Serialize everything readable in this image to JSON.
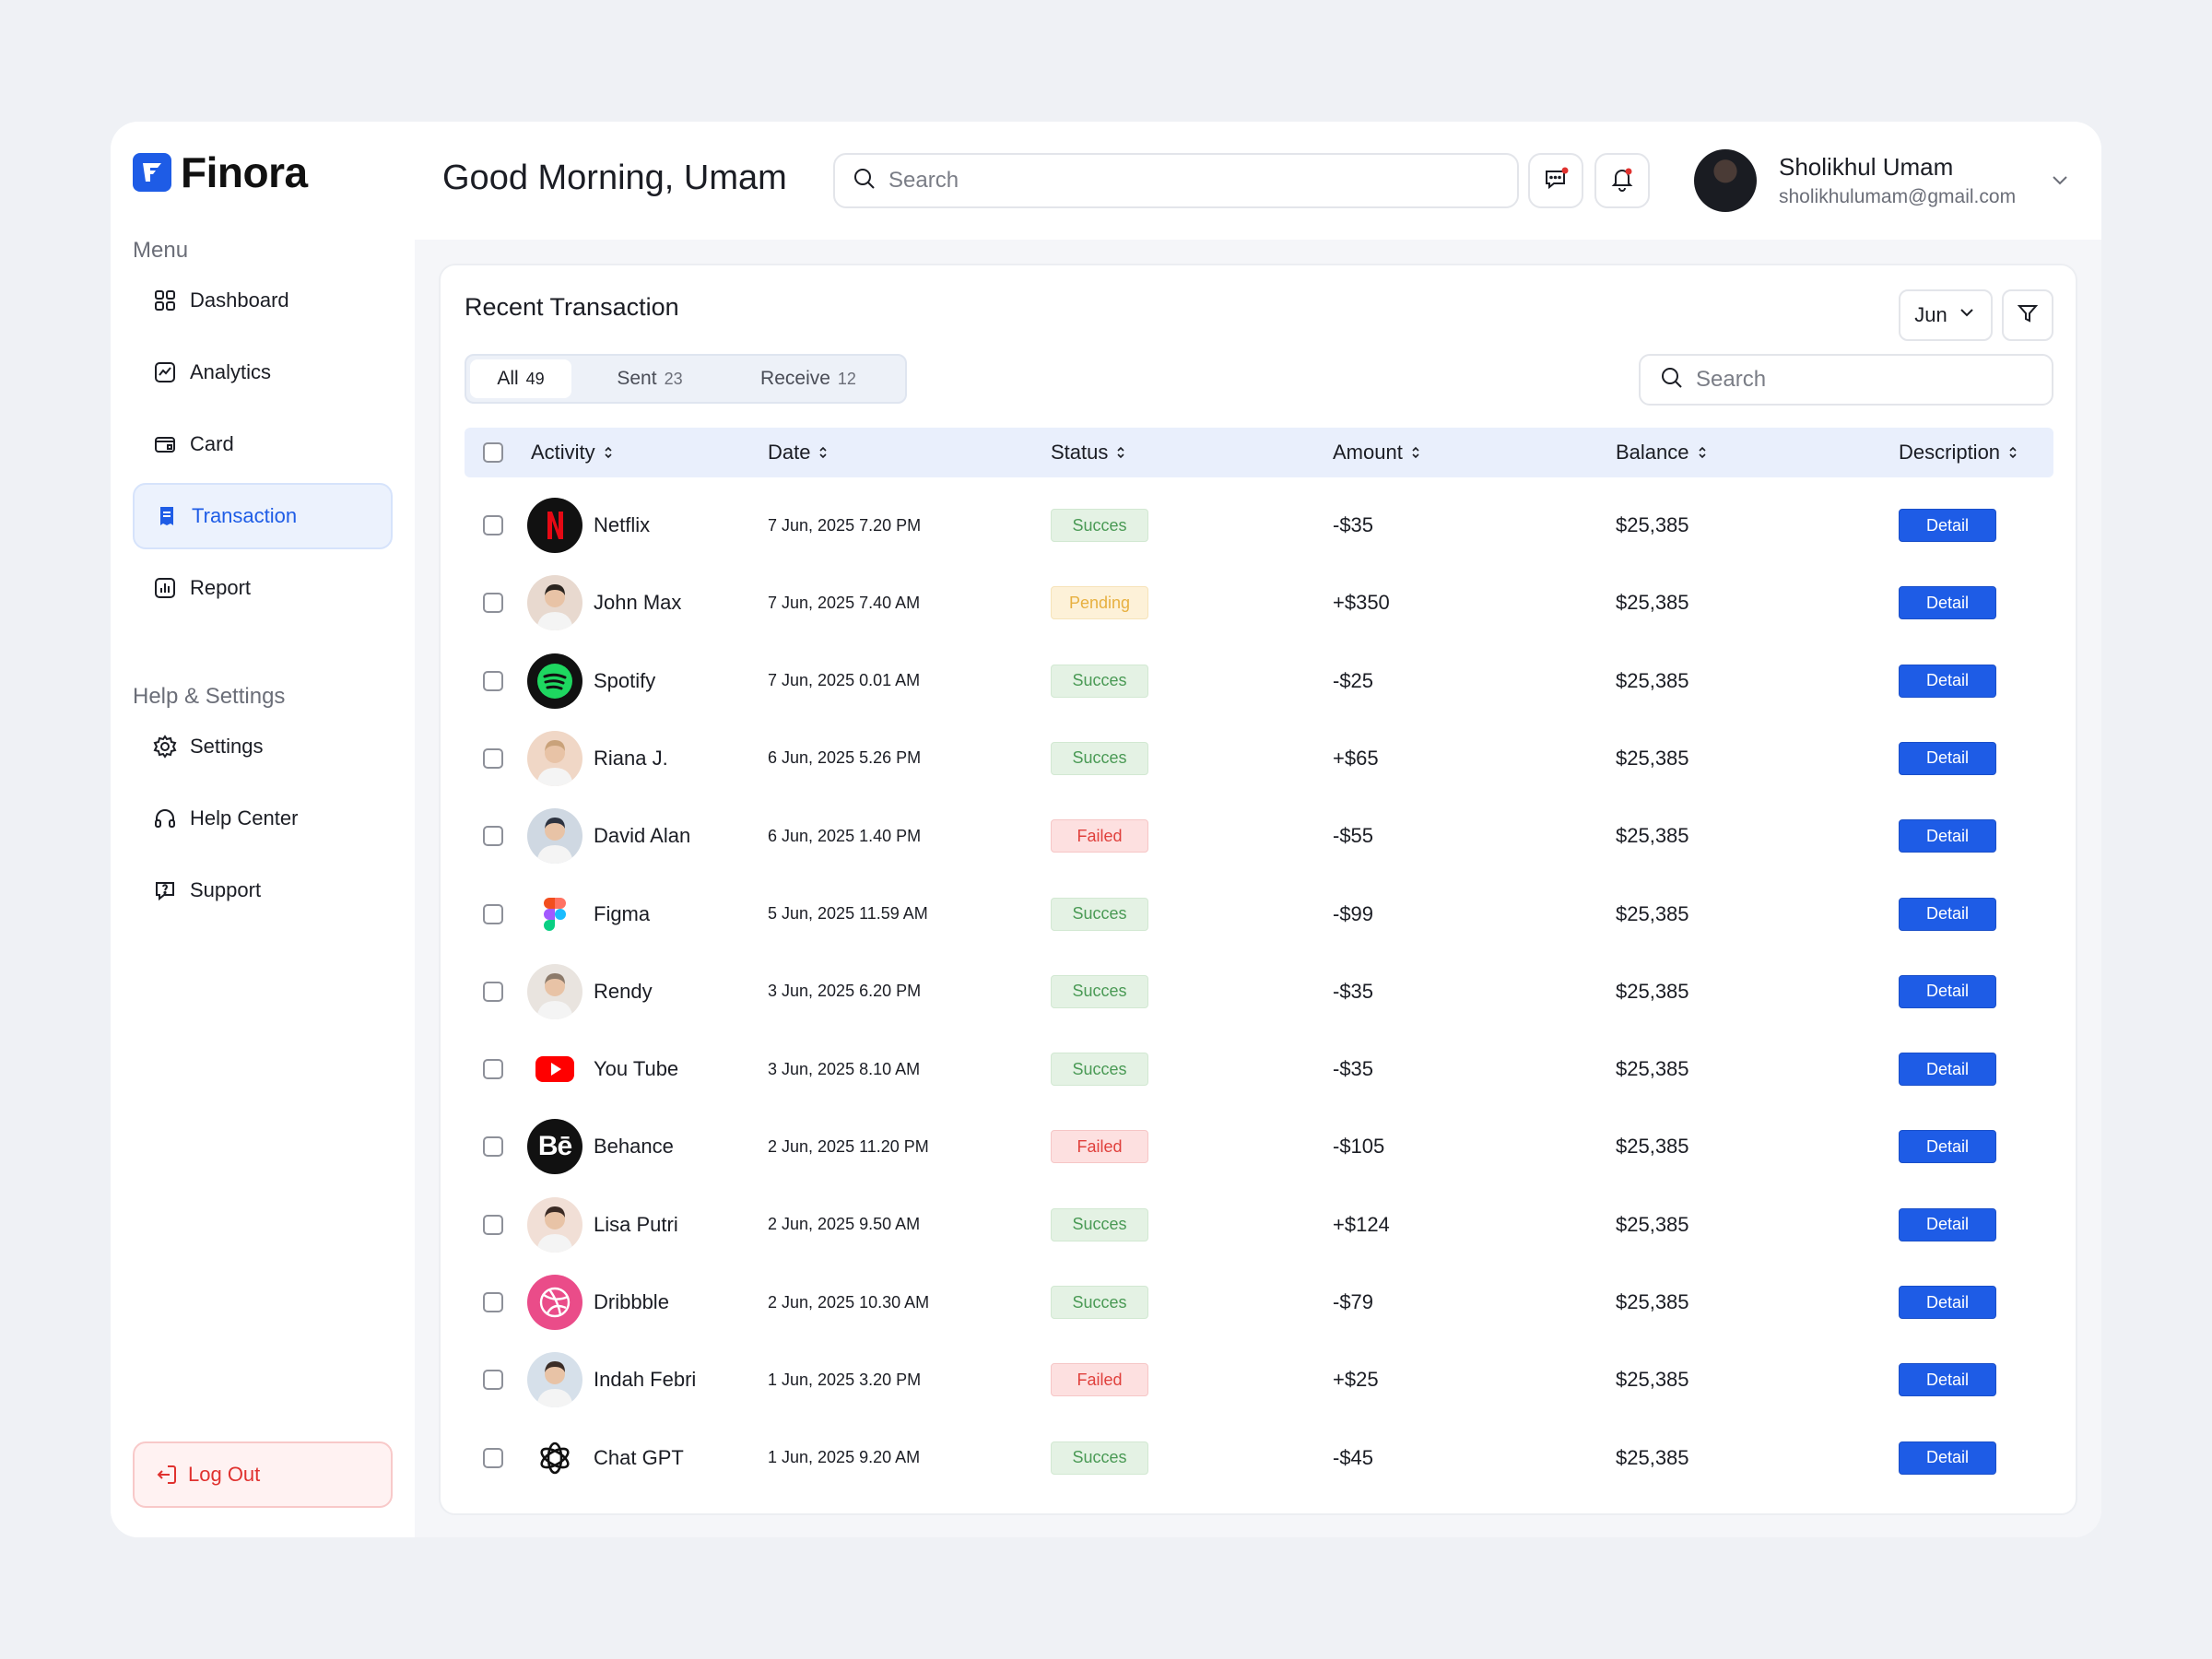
{
  "brand": {
    "name": "Finora",
    "color": "#1e5ce6"
  },
  "sidebar": {
    "menu_label": "Menu",
    "menu_items": [
      {
        "label": "Dashboard",
        "icon": "grid-icon"
      },
      {
        "label": "Analytics",
        "icon": "analytics-icon"
      },
      {
        "label": "Card",
        "icon": "wallet-icon"
      },
      {
        "label": "Transaction",
        "icon": "receipt-icon",
        "active": true
      },
      {
        "label": "Report",
        "icon": "report-icon"
      }
    ],
    "help_label": "Help & Settings",
    "help_items": [
      {
        "label": "Settings",
        "icon": "gear-icon"
      },
      {
        "label": "Help Center",
        "icon": "headset-icon"
      },
      {
        "label": "Support",
        "icon": "question-bubble-icon"
      }
    ],
    "logout_label": "Log Out"
  },
  "header": {
    "greeting": "Good Morning, Umam",
    "search_placeholder": "Search",
    "user": {
      "name": "Sholikhul Umam",
      "email": "sholikhulumam@gmail.com"
    }
  },
  "transactions": {
    "title": "Recent Transaction",
    "month": "Jun",
    "tabs": [
      {
        "label": "All",
        "count": "49",
        "active": true
      },
      {
        "label": "Sent",
        "count": "23"
      },
      {
        "label": "Receive",
        "count": "12"
      }
    ],
    "search_placeholder": "Search",
    "columns": [
      "Activity",
      "Date",
      "Status",
      "Amount",
      "Balance",
      "Description"
    ],
    "detail_label": "Detail",
    "rows": [
      {
        "activity": "Netflix",
        "logo": "netflix-logo",
        "date": "7 Jun, 2025 7.20 PM",
        "status": "Succes",
        "status_type": "success",
        "amount": "-$35",
        "balance": "$25,385"
      },
      {
        "activity": "John Max",
        "logo": "person-avatar",
        "date": "7 Jun, 2025 7.40 AM",
        "status": "Pending",
        "status_type": "pending",
        "amount": "+$350",
        "balance": "$25,385"
      },
      {
        "activity": "Spotify",
        "logo": "spotify-logo",
        "date": "7 Jun, 2025 0.01 AM",
        "status": "Succes",
        "status_type": "success",
        "amount": "-$25",
        "balance": "$25,385"
      },
      {
        "activity": "Riana J.",
        "logo": "person-avatar",
        "date": "6 Jun, 2025 5.26 PM",
        "status": "Succes",
        "status_type": "success",
        "amount": "+$65",
        "balance": "$25,385"
      },
      {
        "activity": "David Alan",
        "logo": "person-avatar",
        "date": "6 Jun, 2025 1.40 PM",
        "status": "Failed",
        "status_type": "failed",
        "amount": "-$55",
        "balance": "$25,385"
      },
      {
        "activity": "Figma",
        "logo": "figma-logo",
        "date": "5 Jun, 2025 11.59 AM",
        "status": "Succes",
        "status_type": "success",
        "amount": "-$99",
        "balance": "$25,385"
      },
      {
        "activity": "Rendy",
        "logo": "person-avatar",
        "date": "3 Jun, 2025 6.20 PM",
        "status": "Succes",
        "status_type": "success",
        "amount": "-$35",
        "balance": "$25,385"
      },
      {
        "activity": "You Tube",
        "logo": "youtube-logo",
        "date": "3 Jun, 2025 8.10 AM",
        "status": "Succes",
        "status_type": "success",
        "amount": "-$35",
        "balance": "$25,385"
      },
      {
        "activity": "Behance",
        "logo": "behance-logo",
        "date": "2 Jun, 2025 11.20 PM",
        "status": "Failed",
        "status_type": "failed",
        "amount": "-$105",
        "balance": "$25,385"
      },
      {
        "activity": "Lisa Putri",
        "logo": "person-avatar",
        "date": "2 Jun, 2025 9.50 AM",
        "status": "Succes",
        "status_type": "success",
        "amount": "+$124",
        "balance": "$25,385"
      },
      {
        "activity": "Dribbble",
        "logo": "dribbble-logo",
        "date": "2 Jun, 2025 10.30 AM",
        "status": "Succes",
        "status_type": "success",
        "amount": "-$79",
        "balance": "$25,385"
      },
      {
        "activity": "Indah Febri",
        "logo": "person-avatar",
        "date": "1 Jun, 2025 3.20 PM",
        "status": "Failed",
        "status_type": "failed",
        "amount": "+$25",
        "balance": "$25,385"
      },
      {
        "activity": "Chat GPT",
        "logo": "chatgpt-logo",
        "date": "1 Jun, 2025 9.20 AM",
        "status": "Succes",
        "status_type": "success",
        "amount": "-$45",
        "balance": "$25,385"
      }
    ]
  }
}
